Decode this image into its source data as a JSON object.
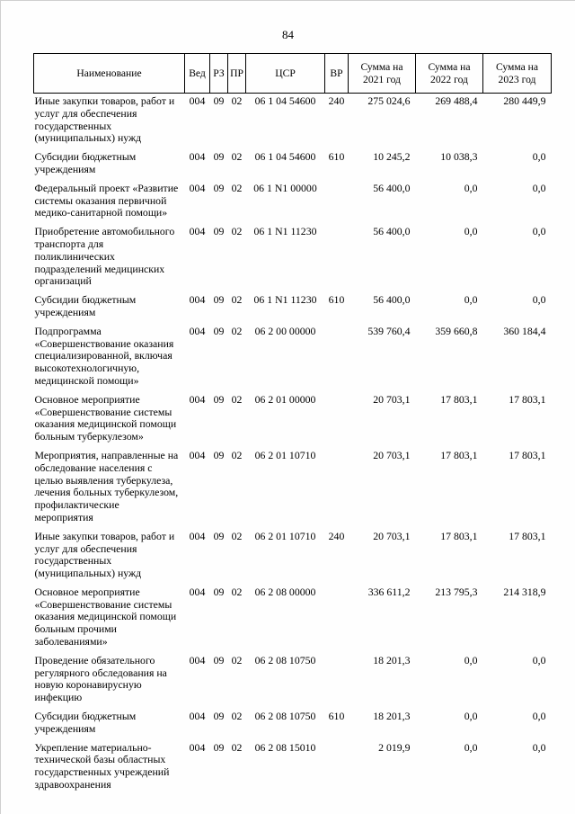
{
  "page": {
    "number": "84"
  },
  "table": {
    "headers": {
      "name": "Наименование",
      "ved": "Вед",
      "rz": "РЗ",
      "pr": "ПР",
      "csr": "ЦСР",
      "vr": "ВР",
      "y2021": "Сумма на 2021 год",
      "y2022": "Сумма на 2022 год",
      "y2023": "Сумма на 2023 год"
    },
    "rows": [
      {
        "name": "Иные закупки товаров, работ и услуг для обеспечения государственных (муниципальных) нужд",
        "ved": "004",
        "rz": "09",
        "pr": "02",
        "csr": "06 1 04 54600",
        "vr": "240",
        "y2021": "275 024,6",
        "y2022": "269 488,4",
        "y2023": "280 449,9"
      },
      {
        "name": "Субсидии бюджетным учреждениям",
        "ved": "004",
        "rz": "09",
        "pr": "02",
        "csr": "06 1 04 54600",
        "vr": "610",
        "y2021": "10 245,2",
        "y2022": "10 038,3",
        "y2023": "0,0"
      },
      {
        "name": "Федеральный проект «Развитие системы оказания первичной медико-санитарной помощи»",
        "ved": "004",
        "rz": "09",
        "pr": "02",
        "csr": "06 1 N1 00000",
        "vr": "",
        "y2021": "56 400,0",
        "y2022": "0,0",
        "y2023": "0,0"
      },
      {
        "name": "Приобретение автомобильного транспорта для поликлинических подразделений медицинских организаций",
        "ved": "004",
        "rz": "09",
        "pr": "02",
        "csr": "06 1 N1 11230",
        "vr": "",
        "y2021": "56 400,0",
        "y2022": "0,0",
        "y2023": "0,0"
      },
      {
        "name": "Субсидии бюджетным учреждениям",
        "ved": "004",
        "rz": "09",
        "pr": "02",
        "csr": "06 1 N1 11230",
        "vr": "610",
        "y2021": "56 400,0",
        "y2022": "0,0",
        "y2023": "0,0"
      },
      {
        "name": "Подпрограмма «Совершенствование оказания специализированной, включая высокотехнологичную, медицинской помощи»",
        "ved": "004",
        "rz": "09",
        "pr": "02",
        "csr": "06 2 00 00000",
        "vr": "",
        "y2021": "539 760,4",
        "y2022": "359 660,8",
        "y2023": "360 184,4"
      },
      {
        "name": "Основное мероприятие «Совершенствование системы оказания медицинской помощи больным туберкулезом»",
        "ved": "004",
        "rz": "09",
        "pr": "02",
        "csr": "06 2 01 00000",
        "vr": "",
        "y2021": "20 703,1",
        "y2022": "17 803,1",
        "y2023": "17 803,1"
      },
      {
        "name": "Мероприятия, направленные на обследование населения с целью выявления туберкулеза, лечения больных туберкулезом, профилактические мероприятия",
        "ved": "004",
        "rz": "09",
        "pr": "02",
        "csr": "06 2 01 10710",
        "vr": "",
        "y2021": "20 703,1",
        "y2022": "17 803,1",
        "y2023": "17 803,1"
      },
      {
        "name": "Иные закупки товаров, работ и услуг для обеспечения государственных (муниципальных) нужд",
        "ved": "004",
        "rz": "09",
        "pr": "02",
        "csr": "06 2 01 10710",
        "vr": "240",
        "y2021": "20 703,1",
        "y2022": "17 803,1",
        "y2023": "17 803,1"
      },
      {
        "name": "Основное мероприятие «Совершенствование системы оказания медицинской помощи больным прочими заболеваниями»",
        "ved": "004",
        "rz": "09",
        "pr": "02",
        "csr": "06 2 08 00000",
        "vr": "",
        "y2021": "336 611,2",
        "y2022": "213 795,3",
        "y2023": "214 318,9"
      },
      {
        "name": "Проведение обязательного регулярного обследования на новую коронавирусную инфекцию",
        "ved": "004",
        "rz": "09",
        "pr": "02",
        "csr": "06 2 08 10750",
        "vr": "",
        "y2021": "18 201,3",
        "y2022": "0,0",
        "y2023": "0,0"
      },
      {
        "name": "Субсидии бюджетным учреждениям",
        "ved": "004",
        "rz": "09",
        "pr": "02",
        "csr": "06 2 08 10750",
        "vr": "610",
        "y2021": "18 201,3",
        "y2022": "0,0",
        "y2023": "0,0"
      },
      {
        "name": "Укрепление материально-технической базы областных государственных учреждений здравоохранения",
        "ved": "004",
        "rz": "09",
        "pr": "02",
        "csr": "06 2 08 15010",
        "vr": "",
        "y2021": "2 019,9",
        "y2022": "0,0",
        "y2023": "0,0"
      }
    ]
  }
}
